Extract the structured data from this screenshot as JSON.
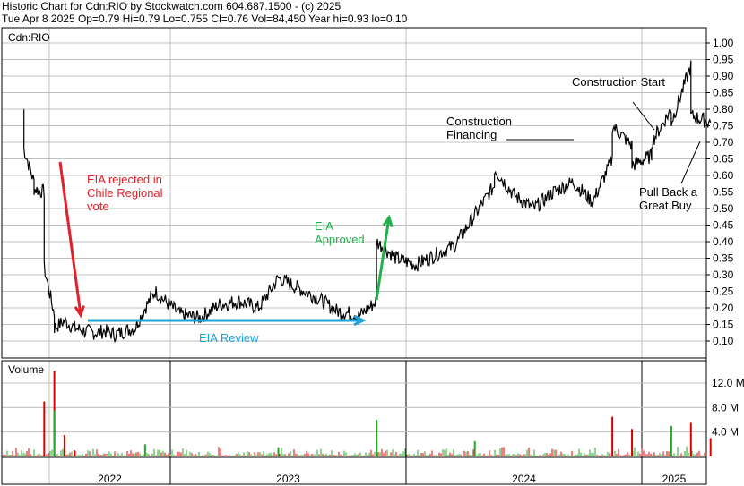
{
  "header": {
    "line1": "Historic Chart for Cdn:RIO by Stockwatch.com 604.687.1500 - (c) 2025",
    "line2": "Tue Apr  8 2025  Op=0.79  Hi=0.79  Lo=0.755  Cl=0.76  Vol=84,450  Year hi=0.93  lo=0.10"
  },
  "price_panel": {
    "label": "Cdn:RIO"
  },
  "volume_panel": {
    "label": "Volume"
  },
  "annotations": {
    "eia_rejected": [
      "EIA rejected in",
      "Chile Regional",
      "vote"
    ],
    "eia_review": "EIA Review",
    "eia_approved": [
      "EIA",
      "Approved"
    ],
    "construction_financing": [
      "Construction",
      "Financing"
    ],
    "construction_start": "Construction Start",
    "pull_back": [
      "Pull Back a",
      "Great Buy"
    ]
  },
  "colors": {
    "price_line": "#000000",
    "grid": "#c0c0c0",
    "volume_up": "#22aa22",
    "volume_down": "#dd0000",
    "annotation_red": "#e0202a",
    "annotation_blue": "#1aa3d9",
    "annotation_green": "#22b04b"
  },
  "chart_data": [
    {
      "type": "line",
      "title": "Cdn:RIO",
      "ylim": [
        0.05,
        1.02
      ],
      "y_ticks": [
        "1.00",
        "0.95",
        "0.90",
        "0.85",
        "0.80",
        "0.75",
        "0.70",
        "0.65",
        "0.60",
        "0.55",
        "0.50",
        "0.45",
        "0.40",
        "0.35",
        "0.30",
        "0.25",
        "0.20",
        "0.15",
        "0.10"
      ],
      "x_ticks": [
        "2022",
        "2023",
        "2024",
        "2025"
      ],
      "series": [
        {
          "values": [
            [
              "2021-10",
              0.8
            ],
            [
              "2021-10",
              0.68
            ],
            [
              "2021-11",
              0.58
            ],
            [
              "2021-11",
              0.56
            ],
            [
              "2021-12",
              0.55
            ],
            [
              "2021-12",
              0.5
            ],
            [
              "2021-12",
              0.32
            ],
            [
              "2022-01",
              0.18
            ],
            [
              "2022-01",
              0.14
            ],
            [
              "2022-02",
              0.16
            ],
            [
              "2022-03",
              0.14
            ],
            [
              "2022-04",
              0.13
            ],
            [
              "2022-05",
              0.125
            ],
            [
              "2022-06",
              0.13
            ],
            [
              "2022-07",
              0.12
            ],
            [
              "2022-08",
              0.13
            ],
            [
              "2022-09",
              0.14
            ],
            [
              "2022-10",
              0.2
            ],
            [
              "2022-11",
              0.25
            ],
            [
              "2022-12",
              0.22
            ],
            [
              "2023-01",
              0.18
            ],
            [
              "2023-02",
              0.17
            ],
            [
              "2023-03",
              0.21
            ],
            [
              "2023-04",
              0.22
            ],
            [
              "2023-05",
              0.2
            ],
            [
              "2023-06",
              0.29
            ],
            [
              "2023-07",
              0.26
            ],
            [
              "2023-08",
              0.23
            ],
            [
              "2023-09",
              0.19
            ],
            [
              "2023-10",
              0.18
            ],
            [
              "2023-10",
              0.17
            ],
            [
              "2023-11",
              0.22
            ],
            [
              "2023-11",
              0.4
            ],
            [
              "2023-12",
              0.35
            ],
            [
              "2024-01",
              0.33
            ],
            [
              "2024-02",
              0.36
            ],
            [
              "2024-03",
              0.39
            ],
            [
              "2024-04",
              0.48
            ],
            [
              "2024-05",
              0.57
            ],
            [
              "2024-05",
              0.62
            ],
            [
              "2024-06",
              0.54
            ],
            [
              "2024-07",
              0.5
            ],
            [
              "2024-08",
              0.55
            ],
            [
              "2024-09",
              0.58
            ],
            [
              "2024-10",
              0.52
            ],
            [
              "2024-11",
              0.65
            ],
            [
              "2024-11",
              0.75
            ],
            [
              "2024-12",
              0.69
            ],
            [
              "2024-12",
              0.63
            ],
            [
              "2025-01",
              0.66
            ],
            [
              "2025-01",
              0.7
            ],
            [
              "2025-02",
              0.8
            ],
            [
              "2025-02",
              0.76
            ],
            [
              "2025-03",
              0.93
            ],
            [
              "2025-03",
              0.78
            ],
            [
              "2025-04",
              0.76
            ]
          ]
        }
      ]
    },
    {
      "type": "bar",
      "title": "Volume",
      "ylim": [
        0,
        14.5
      ],
      "y_ticks": [
        "12.0 M",
        "8.0 M",
        "4.0 M"
      ],
      "x_ticks": [
        "2022",
        "2023",
        "2024",
        "2025"
      ],
      "series": [
        {
          "name": "down",
          "values": [
            [
              "2022-01",
              14.0
            ],
            [
              "2021-12",
              9.0
            ],
            [
              "2022-02",
              3.5
            ],
            [
              "2022-03",
              1.0
            ],
            [
              "2023-11",
              2.2
            ],
            [
              "2024-11",
              6.5
            ],
            [
              "2024-12",
              4.5
            ],
            [
              "2025-03",
              5.5
            ],
            [
              "2025-04",
              3.0
            ]
          ]
        },
        {
          "name": "up",
          "values": [
            [
              "2022-01",
              7.5
            ],
            [
              "2022-10",
              2.0
            ],
            [
              "2023-06",
              1.5
            ],
            [
              "2023-11",
              6.0
            ],
            [
              "2024-04",
              2.5
            ],
            [
              "2025-02",
              5.0
            ]
          ]
        }
      ]
    }
  ]
}
